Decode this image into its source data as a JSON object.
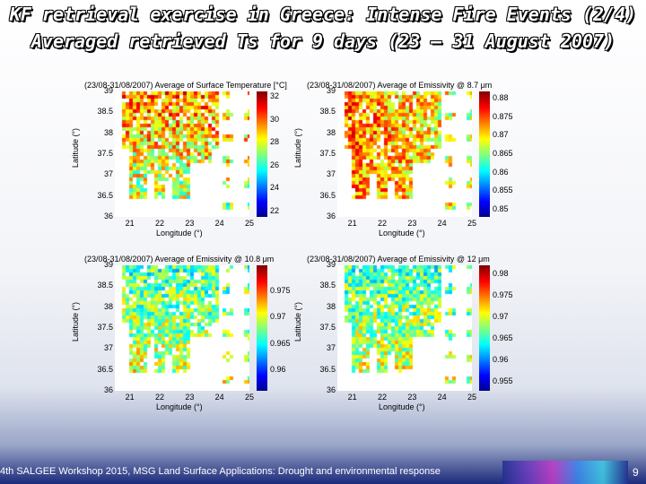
{
  "slide": {
    "title_line1": "KF retrieval exercise in Greece: Intense Fire Events (2/4)",
    "title_line2": "Averaged retrieved Ts for 9 days (23 – 31 August 2007)",
    "footer": "4th SALGEE Workshop 2015, MSG Land Surface Applications: Drought and environmental response",
    "page_number": "9"
  },
  "chart_data": [
    {
      "type": "heatmap",
      "title": "(23/08-31/08/2007) Average of Surface Temperature [°C]",
      "xlabel": "Longitude (°)",
      "ylabel": "Latitude (°)",
      "x_ticks": [
        "21",
        "22",
        "23",
        "24",
        "25"
      ],
      "y_ticks": [
        "39",
        "38.5",
        "38",
        "37.5",
        "37",
        "36.5",
        "36"
      ],
      "xlim": [
        20.5,
        25
      ],
      "ylim": [
        36,
        39
      ],
      "colorbar_ticks": [
        "32",
        "30",
        "28",
        "26",
        "24",
        "22"
      ],
      "colorbar_range": [
        21.5,
        32.5
      ]
    },
    {
      "type": "heatmap",
      "title": "(23/08-31/08/2007) Average of Emissivity @ 8.7 μm",
      "xlabel": "Longitude (°)",
      "ylabel": "Latitude (°)",
      "x_ticks": [
        "21",
        "22",
        "23",
        "24",
        "25"
      ],
      "y_ticks": [
        "39",
        "38.5",
        "38",
        "37.5",
        "37",
        "36.5",
        "36"
      ],
      "xlim": [
        20.5,
        25
      ],
      "ylim": [
        36,
        39
      ],
      "colorbar_ticks": [
        "0.88",
        "0.875",
        "0.87",
        "0.865",
        "0.86",
        "0.855",
        "0.85"
      ],
      "colorbar_range": [
        0.848,
        0.882
      ]
    },
    {
      "type": "heatmap",
      "title": "(23/08-31/08/2007) Average of Emissivity @ 10.8 μm",
      "xlabel": "Longitude (°)",
      "ylabel": "Latitude (°)",
      "x_ticks": [
        "21",
        "22",
        "23",
        "24",
        "25"
      ],
      "y_ticks": [
        "39",
        "38.5",
        "38",
        "37.5",
        "37",
        "36.5",
        "36"
      ],
      "xlim": [
        20.5,
        25
      ],
      "ylim": [
        36,
        39
      ],
      "colorbar_ticks": [
        "0.975",
        "0.97",
        "0.965",
        "0.96"
      ],
      "colorbar_range": [
        0.956,
        0.98
      ]
    },
    {
      "type": "heatmap",
      "title": "(23/08-31/08/2007) Average of Emissivity @ 12 μm",
      "xlabel": "Longitude (°)",
      "ylabel": "Latitude (°)",
      "x_ticks": [
        "21",
        "22",
        "23",
        "24",
        "25"
      ],
      "y_ticks": [
        "39",
        "38.5",
        "38",
        "37.5",
        "37",
        "36.5",
        "36"
      ],
      "xlim": [
        20.5,
        25
      ],
      "ylim": [
        36,
        39
      ],
      "colorbar_ticks": [
        "0.98",
        "0.975",
        "0.97",
        "0.965",
        "0.96",
        "0.955"
      ],
      "colorbar_range": [
        0.953,
        0.982
      ]
    }
  ]
}
